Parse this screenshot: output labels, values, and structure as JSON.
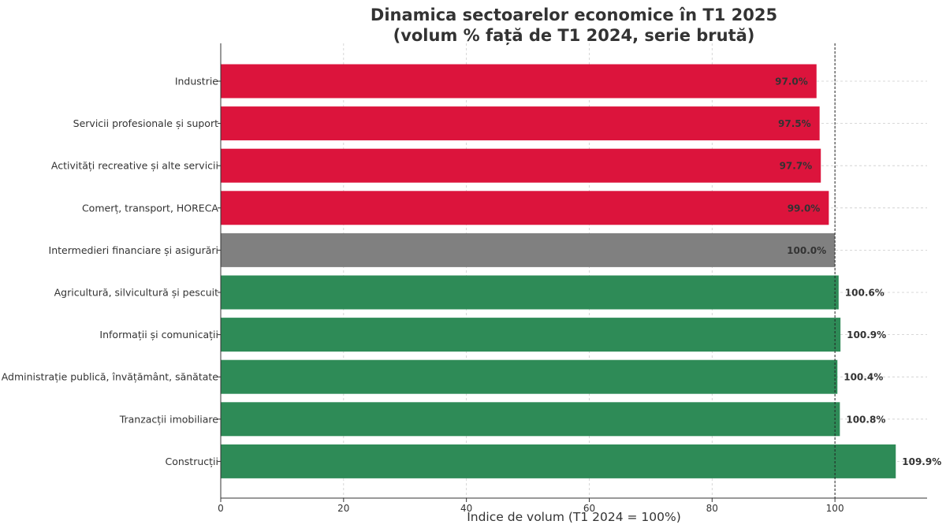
{
  "chart_data": {
    "type": "bar",
    "orientation": "horizontal",
    "title": "Dinamica sectoarelor economice în T1 2025",
    "subtitle": "(volum % față de T1 2024, serie brută)",
    "xlabel": "Indice de volum (T1 2024 = 100%)",
    "ylabel": "",
    "xlim": [
      0,
      115
    ],
    "xticks": [
      0,
      20,
      40,
      60,
      80,
      100
    ],
    "reference_line": 100,
    "grid": "dashed",
    "categories": [
      "Industrie",
      "Servicii profesionale și suport",
      "Activități recreative și alte servicii",
      "Comerț, transport, HORECA",
      "Intermedieri financiare și asigurări",
      "Agricultură, silvicultură și pescuit",
      "Informații și comunicații",
      "Administrație publică, învățământ, sănătate",
      "Tranzacții imobiliare",
      "Construcții"
    ],
    "values": [
      97.0,
      97.5,
      97.7,
      99.0,
      100.0,
      100.6,
      100.9,
      100.4,
      100.8,
      109.9
    ],
    "value_labels": [
      "97.0%",
      "97.5%",
      "97.7%",
      "99.0%",
      "100.0%",
      "100.6%",
      "100.9%",
      "100.4%",
      "100.8%",
      "109.9%"
    ],
    "colors": {
      "decline": "#dc143c",
      "neutral": "#808080",
      "growth": "#2e8b57"
    }
  }
}
